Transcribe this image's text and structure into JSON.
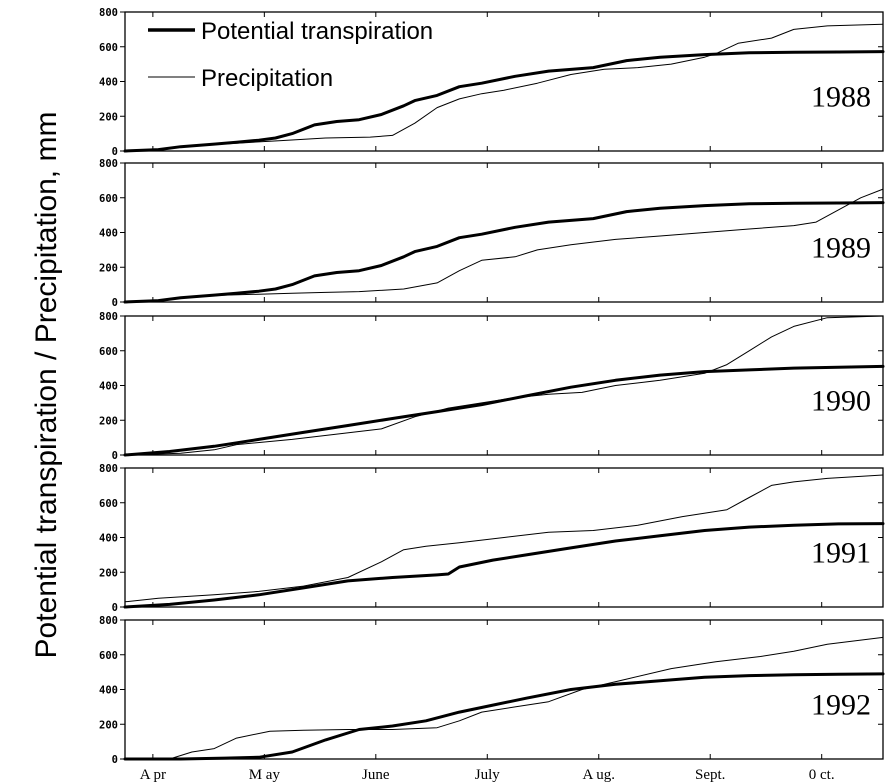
{
  "ylabel": "Potential transpiration / Precipitation, mm",
  "legend": {
    "items": [
      {
        "label": "Potential transpiration",
        "style": "thick"
      },
      {
        "label": "Precipitation",
        "style": "thin"
      }
    ]
  },
  "x_ticks": [
    "A pr",
    "M ay",
    "June",
    "July",
    "A ug.",
    "Sept.",
    "0 ct."
  ],
  "colors": {
    "line": "#000000",
    "background": "#ffffff"
  },
  "chart_data": {
    "type": "line",
    "xlabel": "",
    "ylabel": "Potential transpiration / Precipitation, mm",
    "ylim": [
      0,
      800
    ],
    "xlim": [
      0,
      6.8
    ],
    "y_ticks": [
      0,
      200,
      400,
      600,
      800
    ],
    "x_tick_positions": [
      0.25,
      1.25,
      2.25,
      3.25,
      4.25,
      5.25,
      6.25
    ],
    "x_tick_labels": [
      "A pr",
      "M ay",
      "June",
      "July",
      "A ug.",
      "Sept.",
      "0 ct."
    ],
    "grid": false,
    "legend_position": "top-left",
    "panels": [
      {
        "year": "1988",
        "series": [
          {
            "name": "Potential transpiration",
            "x": [
              0,
              0.3,
              0.5,
              0.8,
              1,
              1.2,
              1.35,
              1.5,
              1.7,
              1.9,
              2.1,
              2.3,
              2.5,
              2.6,
              2.8,
              3,
              3.2,
              3.5,
              3.8,
              4.2,
              4.5,
              4.8,
              5.2,
              5.6,
              6,
              6.4,
              6.8
            ],
            "y": [
              0,
              8,
              25,
              40,
              50,
              62,
              75,
              100,
              150,
              170,
              180,
              210,
              260,
              290,
              320,
              370,
              390,
              430,
              460,
              480,
              520,
              540,
              555,
              565,
              568,
              570,
              572
            ]
          },
          {
            "name": "Precipitation",
            "x": [
              0,
              0.3,
              0.6,
              1,
              1.4,
              1.8,
              2.2,
              2.4,
              2.6,
              2.8,
              3,
              3.2,
              3.4,
              3.7,
              4,
              4.3,
              4.6,
              4.9,
              5.2,
              5.3,
              5.5,
              5.8,
              6,
              6.3,
              6.8
            ],
            "y": [
              0,
              10,
              30,
              45,
              60,
              75,
              80,
              90,
              160,
              250,
              300,
              330,
              350,
              390,
              440,
              470,
              480,
              500,
              540,
              560,
              620,
              650,
              700,
              720,
              730
            ]
          }
        ]
      },
      {
        "year": "1989",
        "series": [
          {
            "name": "Potential transpiration",
            "x": [
              0,
              0.3,
              0.5,
              0.8,
              1,
              1.2,
              1.35,
              1.5,
              1.7,
              1.9,
              2.1,
              2.3,
              2.5,
              2.6,
              2.8,
              3,
              3.2,
              3.5,
              3.8,
              4.2,
              4.5,
              4.8,
              5.2,
              5.6,
              6,
              6.4,
              6.8
            ],
            "y": [
              0,
              8,
              25,
              40,
              50,
              62,
              75,
              100,
              150,
              170,
              180,
              210,
              260,
              290,
              320,
              370,
              390,
              430,
              460,
              480,
              520,
              540,
              555,
              565,
              568,
              570,
              572
            ]
          },
          {
            "name": "Precipitation",
            "x": [
              0,
              0.3,
              0.6,
              0.9,
              1.2,
              1.5,
              1.8,
              2.1,
              2.5,
              2.8,
              3,
              3.2,
              3.5,
              3.7,
              4,
              4.4,
              4.8,
              5.2,
              5.6,
              6,
              6.2,
              6.4,
              6.6,
              6.8
            ],
            "y": [
              0,
              10,
              30,
              40,
              45,
              50,
              55,
              60,
              75,
              110,
              180,
              240,
              260,
              300,
              330,
              360,
              380,
              400,
              420,
              440,
              460,
              530,
              600,
              650
            ]
          }
        ]
      },
      {
        "year": "1990",
        "series": [
          {
            "name": "Potential transpiration",
            "x": [
              0,
              0.4,
              0.8,
              1.2,
              1.6,
              2,
              2.4,
              2.8,
              3.2,
              3.6,
              4,
              4.4,
              4.8,
              5.2,
              5.6,
              6,
              6.4,
              6.8
            ],
            "y": [
              0,
              20,
              50,
              90,
              130,
              170,
              210,
              250,
              290,
              340,
              390,
              430,
              460,
              480,
              490,
              500,
              505,
              510
            ]
          },
          {
            "name": "Precipitation",
            "x": [
              0,
              0.5,
              0.8,
              1,
              1.5,
              1.9,
              2.3,
              2.6,
              2.9,
              3.2,
              3.5,
              3.8,
              4.1,
              4.4,
              4.8,
              5.2,
              5.4,
              5.6,
              5.8,
              6,
              6.3,
              6.8
            ],
            "y": [
              0,
              10,
              30,
              60,
              90,
              120,
              150,
              220,
              270,
              300,
              330,
              350,
              360,
              400,
              430,
              470,
              520,
              600,
              680,
              740,
              790,
              800
            ]
          }
        ]
      },
      {
        "year": "1991",
        "series": [
          {
            "name": "Potential transpiration",
            "x": [
              0,
              0.4,
              0.8,
              1.2,
              1.6,
              2,
              2.4,
              2.8,
              2.9,
              3,
              3.3,
              3.6,
              4,
              4.4,
              4.8,
              5.2,
              5.6,
              6,
              6.4,
              6.8
            ],
            "y": [
              0,
              15,
              40,
              70,
              110,
              150,
              170,
              185,
              190,
              230,
              270,
              300,
              340,
              380,
              410,
              440,
              460,
              470,
              478,
              480
            ]
          },
          {
            "name": "Precipitation",
            "x": [
              0,
              0.3,
              0.8,
              1.2,
              1.6,
              2,
              2.3,
              2.5,
              2.7,
              3,
              3.4,
              3.8,
              4.2,
              4.6,
              5,
              5.4,
              5.6,
              5.8,
              6,
              6.3,
              6.8
            ],
            "y": [
              30,
              50,
              70,
              90,
              120,
              170,
              260,
              330,
              350,
              370,
              400,
              430,
              440,
              470,
              520,
              560,
              630,
              700,
              720,
              740,
              760
            ]
          }
        ]
      },
      {
        "year": "1992",
        "series": [
          {
            "name": "Potential transpiration",
            "x": [
              0,
              0.5,
              0.9,
              1.2,
              1.5,
              1.8,
              2.1,
              2.4,
              2.7,
              3,
              3.3,
              3.6,
              4,
              4.4,
              4.8,
              5.2,
              5.6,
              6,
              6.4,
              6.8
            ],
            "y": [
              0,
              0,
              5,
              10,
              40,
              110,
              170,
              190,
              220,
              270,
              310,
              350,
              400,
              430,
              450,
              470,
              480,
              485,
              488,
              490
            ]
          },
          {
            "name": "Precipitation",
            "x": [
              0,
              0.4,
              0.6,
              0.8,
              1,
              1.3,
              1.6,
              2,
              2.4,
              2.8,
              3,
              3.2,
              3.5,
              3.8,
              4.1,
              4.5,
              4.9,
              5.3,
              5.7,
              6,
              6.3,
              6.8
            ],
            "y": [
              0,
              0,
              40,
              60,
              120,
              160,
              165,
              170,
              170,
              180,
              220,
              270,
              300,
              330,
              400,
              460,
              520,
              560,
              590,
              620,
              660,
              700
            ]
          }
        ]
      }
    ]
  }
}
